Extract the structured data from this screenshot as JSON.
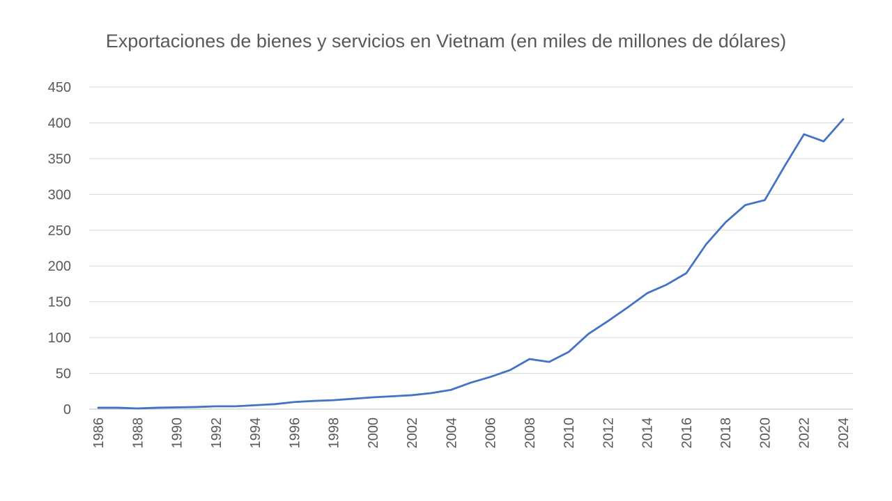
{
  "chart_data": {
    "type": "line",
    "title": "Exportaciones de bienes y servicios en Vietnam (en miles de millones de dólares)",
    "xlabel": "",
    "ylabel": "",
    "ylim": [
      0,
      450
    ],
    "yticks": [
      0,
      50,
      100,
      150,
      200,
      250,
      300,
      350,
      400,
      450
    ],
    "xtick_labels": [
      "1986",
      "1988",
      "1990",
      "1992",
      "1994",
      "1996",
      "1998",
      "2000",
      "2002",
      "2004",
      "2006",
      "2008",
      "2010",
      "2012",
      "2014",
      "2016",
      "2018",
      "2020",
      "2022",
      "2024"
    ],
    "grid": "horizontal",
    "legend": "none",
    "line_color": "#4472C4",
    "x": [
      1986,
      1987,
      1988,
      1989,
      1990,
      1991,
      1992,
      1993,
      1994,
      1995,
      1996,
      1997,
      1998,
      1999,
      2000,
      2001,
      2002,
      2003,
      2004,
      2005,
      2006,
      2007,
      2008,
      2009,
      2010,
      2011,
      2012,
      2013,
      2014,
      2015,
      2016,
      2017,
      2018,
      2019,
      2020,
      2021,
      2022,
      2023,
      2024
    ],
    "series": [
      {
        "values": [
          2,
          2,
          1,
          2,
          2.5,
          3,
          4,
          4,
          5.5,
          7,
          10,
          11.5,
          12.5,
          14.5,
          16.5,
          18,
          19.5,
          22.5,
          27,
          37,
          45,
          54.5,
          70,
          66,
          80,
          105,
          123,
          142,
          162,
          174,
          190,
          230,
          261,
          285,
          292,
          339,
          384,
          374,
          405
        ]
      }
    ]
  }
}
